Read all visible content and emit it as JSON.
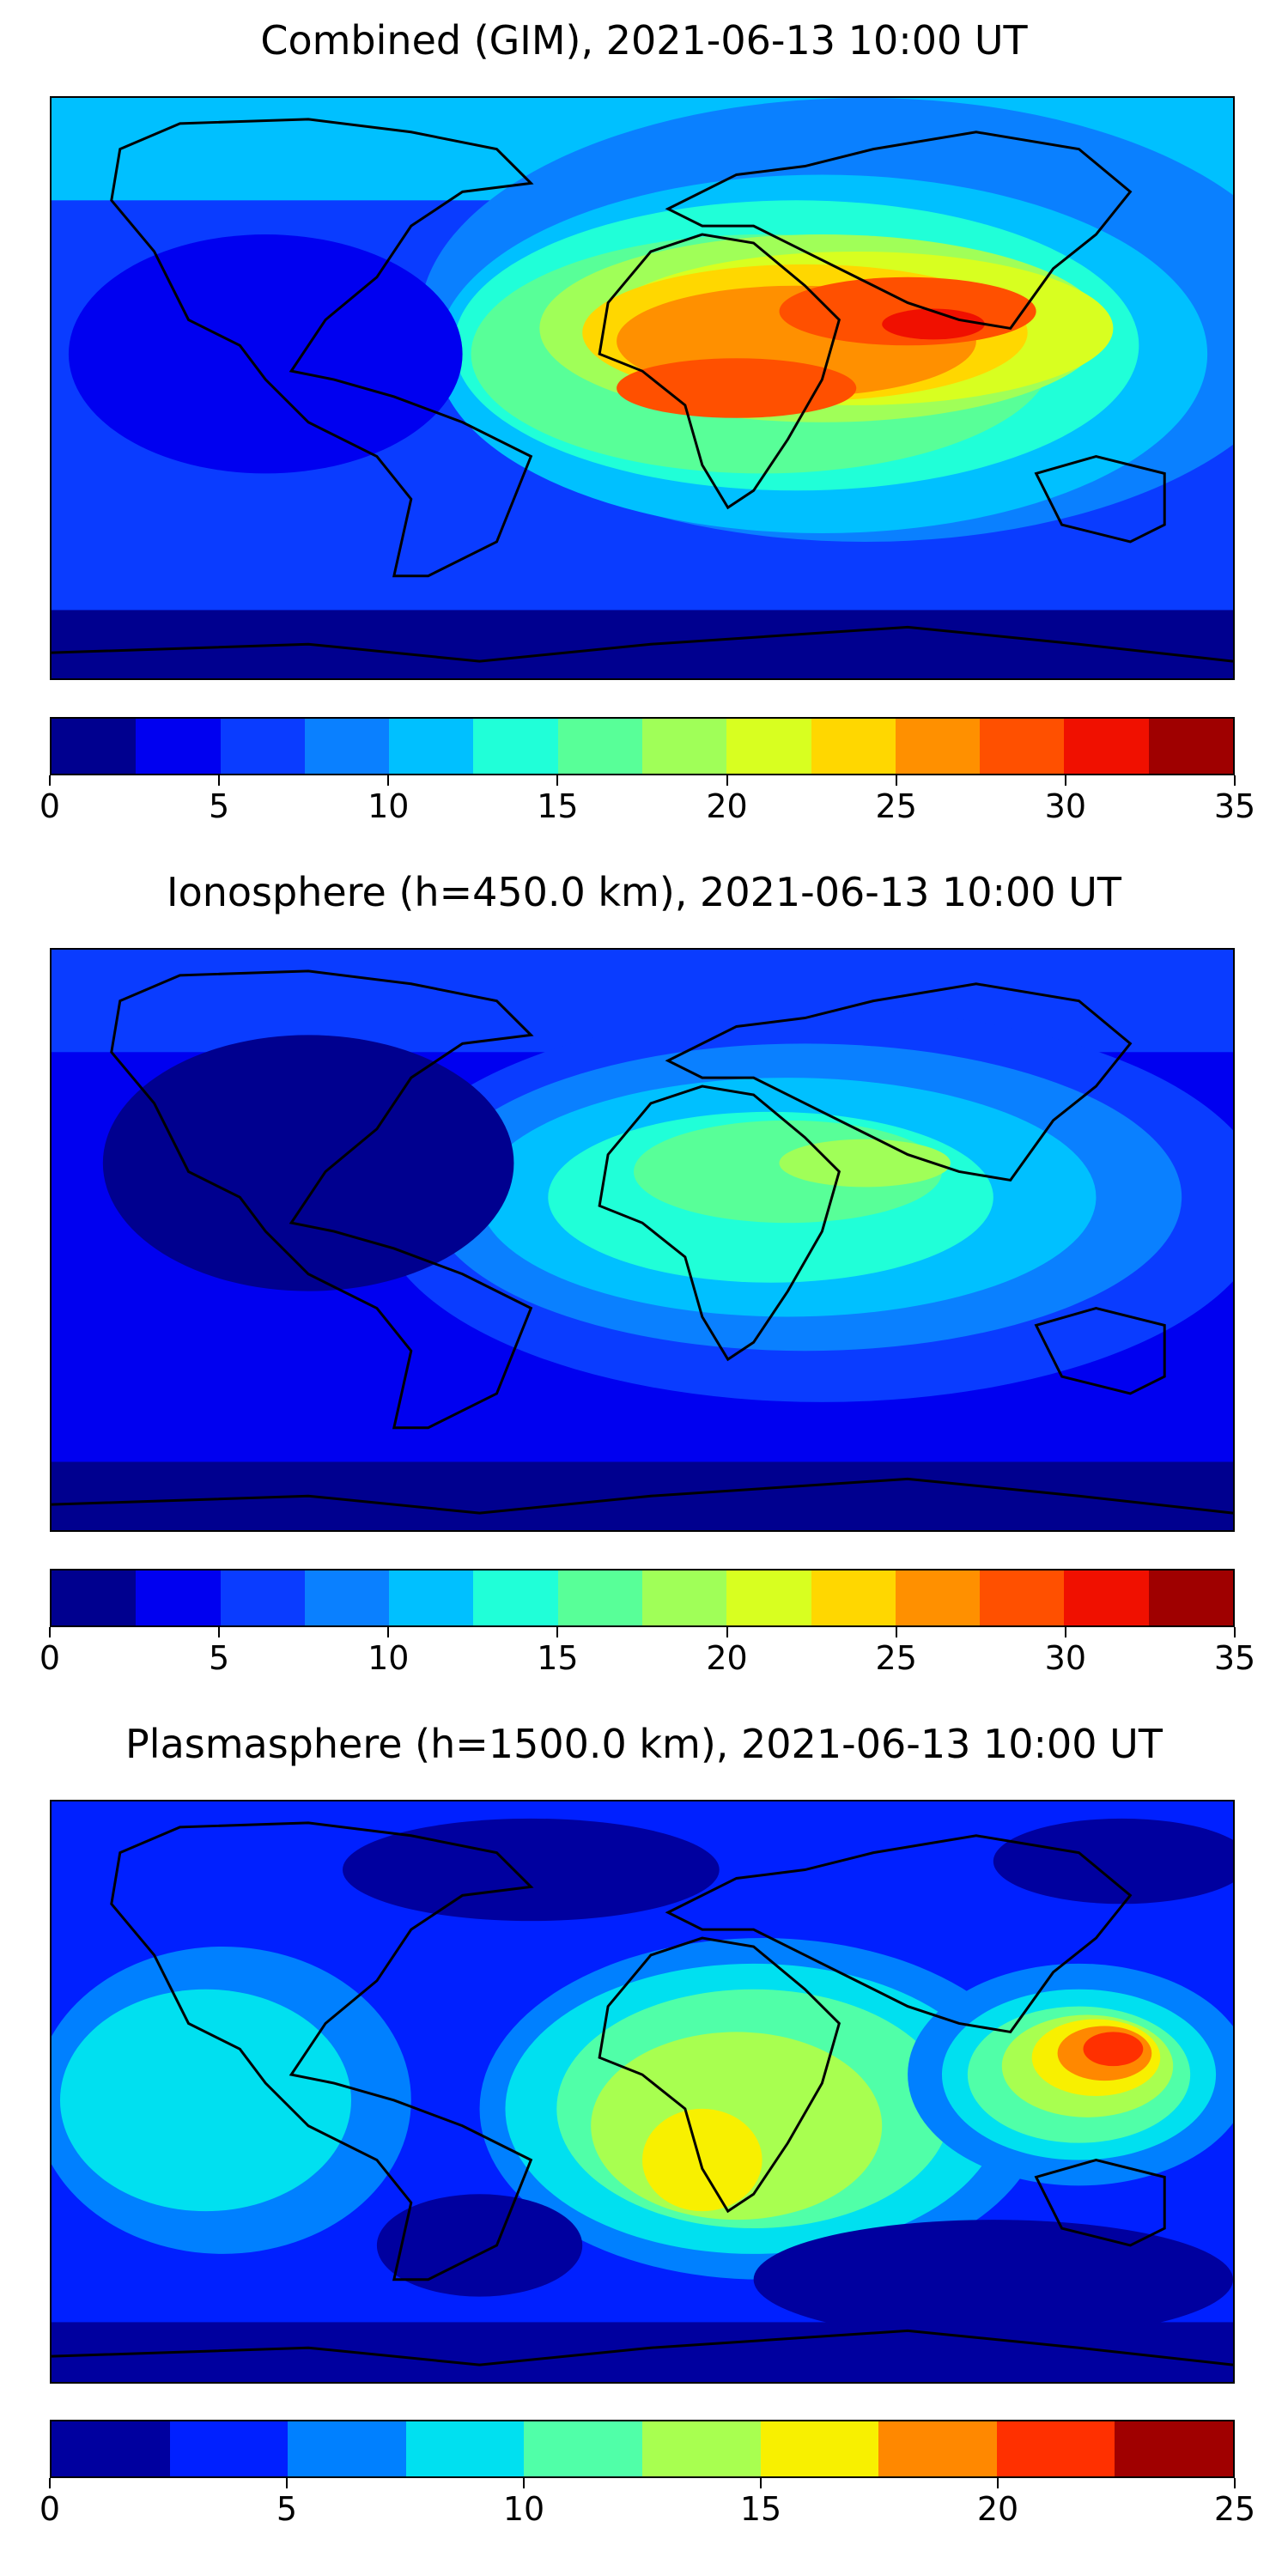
{
  "panels": [
    {
      "title": "Combined (GIM), 2021-06-13 10:00 UT",
      "colorbar": {
        "ticks": [
          "0",
          "5",
          "10",
          "15",
          "20",
          "25",
          "30",
          "35"
        ],
        "colors": [
          "#00008f",
          "#0000f0",
          "#0a3cff",
          "#0a80ff",
          "#00c0ff",
          "#20ffd8",
          "#58ff98",
          "#a0ff58",
          "#d8ff20",
          "#ffd700",
          "#ff9000",
          "#ff5000",
          "#f01000",
          "#9f0000"
        ]
      }
    },
    {
      "title": "Ionosphere  (h=450.0 km), 2021-06-13 10:00 UT",
      "colorbar": {
        "ticks": [
          "0",
          "5",
          "10",
          "15",
          "20",
          "25",
          "30",
          "35"
        ],
        "colors": [
          "#00008f",
          "#0000f0",
          "#0a3cff",
          "#0a80ff",
          "#00c0ff",
          "#20ffd8",
          "#58ff98",
          "#a0ff58",
          "#d8ff20",
          "#ffd700",
          "#ff9000",
          "#ff5000",
          "#f01000",
          "#9f0000"
        ]
      }
    },
    {
      "title": "Plasmasphere (h=1500.0 km), 2021-06-13 10:00 UT",
      "colorbar": {
        "ticks": [
          "0",
          "5",
          "10",
          "15",
          "20",
          "25"
        ],
        "colors": [
          "#00009f",
          "#0020ff",
          "#0080ff",
          "#00e0f0",
          "#50ffa8",
          "#a8ff50",
          "#f8f000",
          "#ff8800",
          "#ff3000",
          "#a00000"
        ]
      }
    }
  ]
}
